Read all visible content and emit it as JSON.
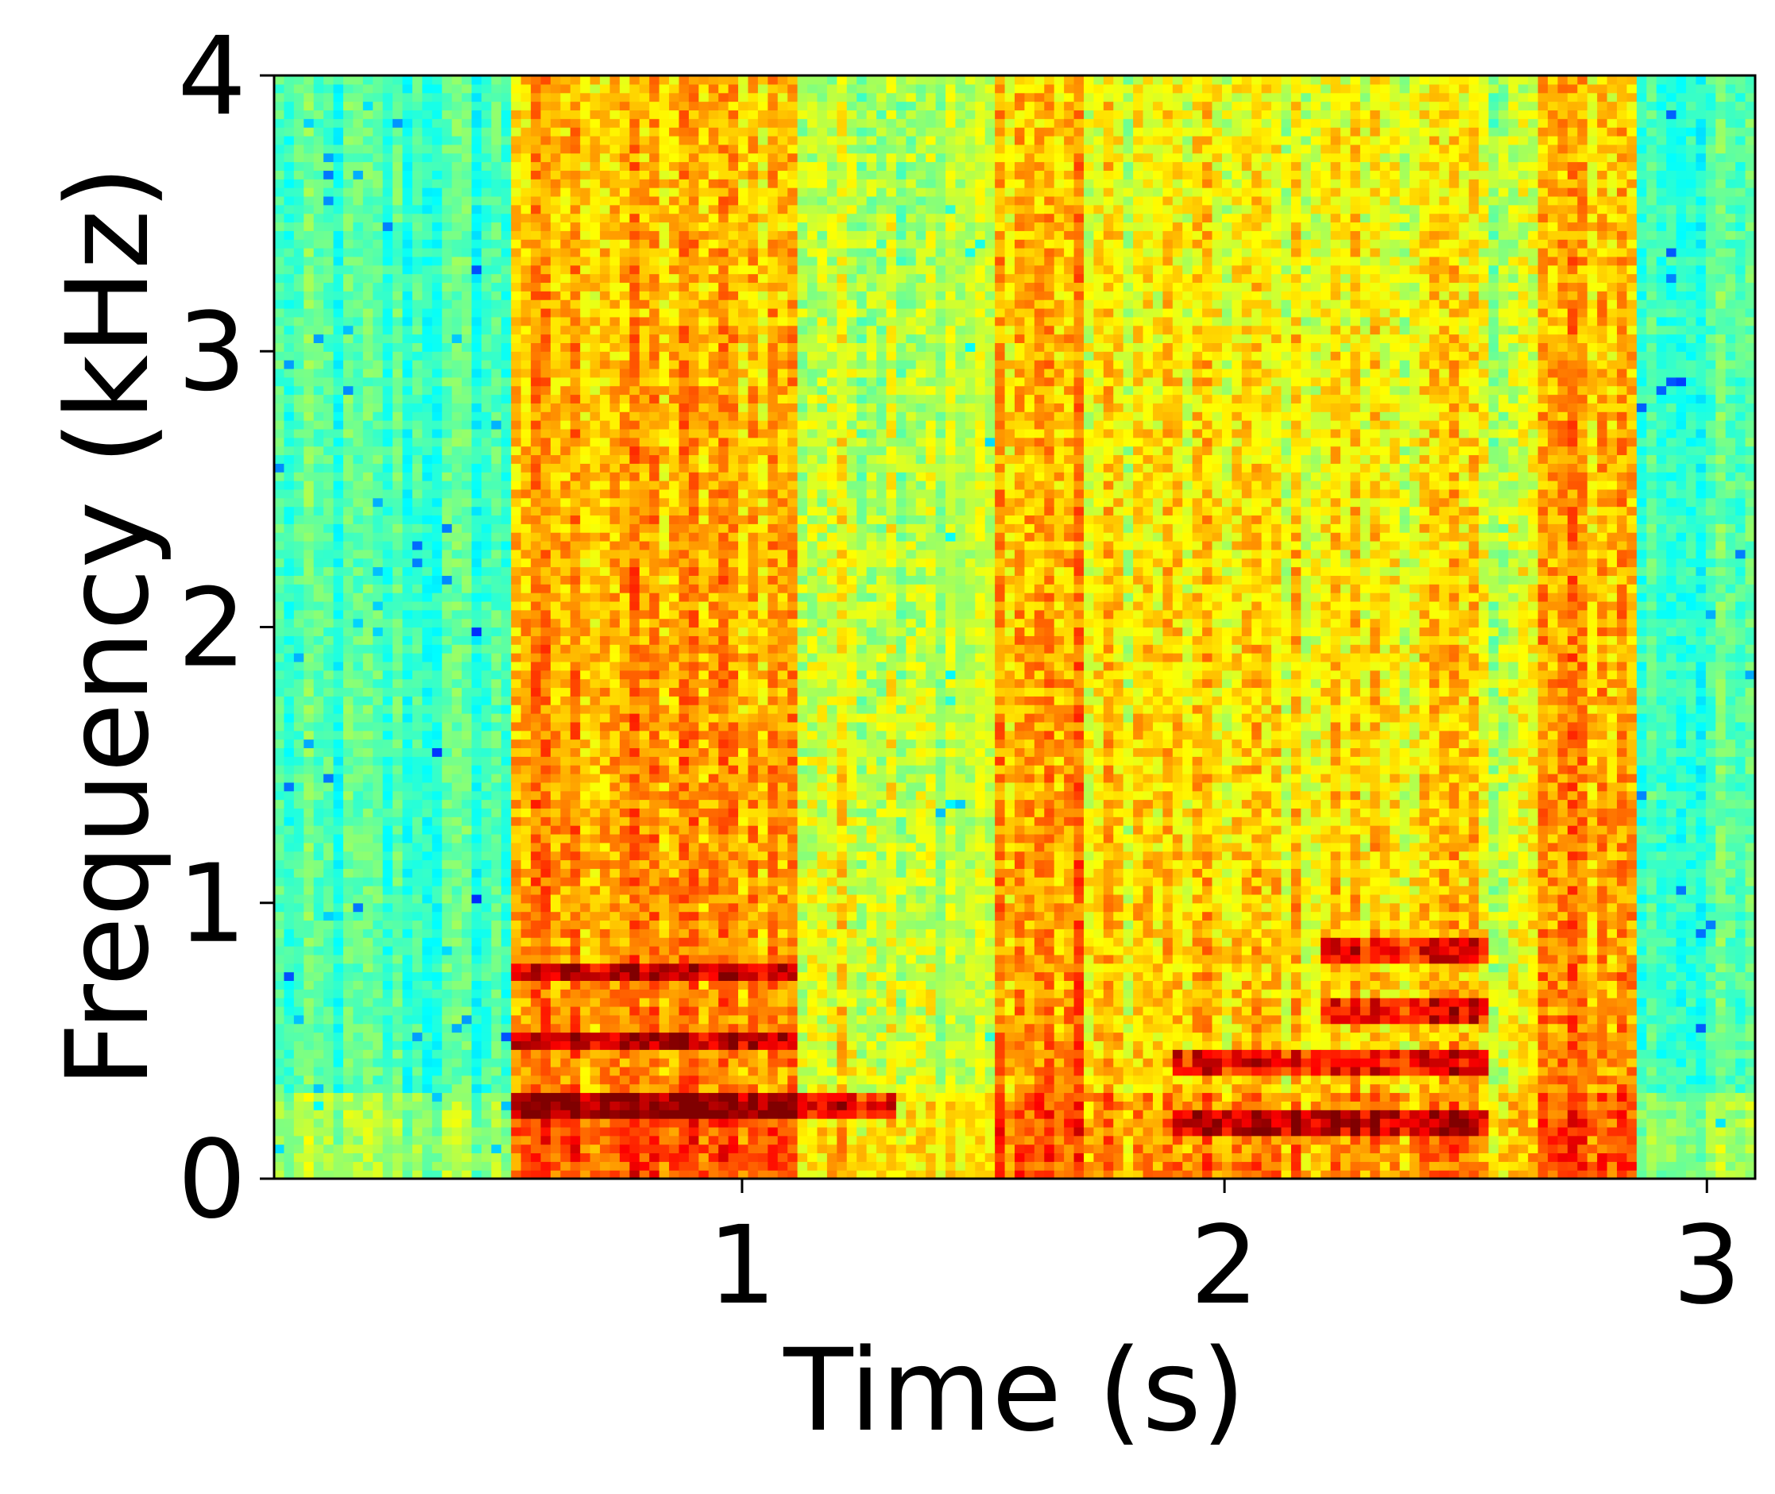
{
  "chart_data": {
    "type": "heatmap",
    "title": "",
    "xlabel": "Time (s)",
    "ylabel": "Frequency (kHz)",
    "xlim": [
      0.03,
      3.1
    ],
    "ylim": [
      0,
      4
    ],
    "xticks": [
      1,
      2,
      3
    ],
    "yticks": [
      0,
      1,
      2,
      3,
      4
    ],
    "xtick_labels": [
      "1",
      "2",
      "3"
    ],
    "ytick_labels": [
      "0",
      "1",
      "2",
      "3",
      "4"
    ],
    "colormap": "jet",
    "grid": false,
    "legend": "none",
    "segments": [
      {
        "start": 0.03,
        "end": 0.52,
        "level": "low"
      },
      {
        "start": 0.52,
        "end": 1.12,
        "level": "high"
      },
      {
        "start": 1.12,
        "end": 1.4,
        "level": "medium"
      },
      {
        "start": 1.4,
        "end": 1.52,
        "level": "low-medium"
      },
      {
        "start": 1.52,
        "end": 1.7,
        "level": "high"
      },
      {
        "start": 1.7,
        "end": 1.9,
        "level": "medium-high"
      },
      {
        "start": 1.9,
        "end": 2.55,
        "level": "medium-high"
      },
      {
        "start": 2.55,
        "end": 2.65,
        "level": "medium"
      },
      {
        "start": 2.65,
        "end": 2.85,
        "level": "high"
      },
      {
        "start": 2.85,
        "end": 3.1,
        "level": "low"
      }
    ],
    "harmonic_tracks": [
      {
        "start": 0.52,
        "end": 1.32,
        "freq_khz": 0.26
      },
      {
        "start": 0.52,
        "end": 1.12,
        "freq_khz": 0.5
      },
      {
        "start": 0.52,
        "end": 1.12,
        "freq_khz": 0.75
      },
      {
        "start": 1.9,
        "end": 2.55,
        "freq_khz": 0.21
      },
      {
        "start": 1.9,
        "end": 2.55,
        "freq_khz": 0.42
      },
      {
        "start": 2.2,
        "end": 2.55,
        "freq_khz": 0.62
      },
      {
        "start": 2.2,
        "end": 2.55,
        "freq_khz": 0.82
      }
    ]
  }
}
